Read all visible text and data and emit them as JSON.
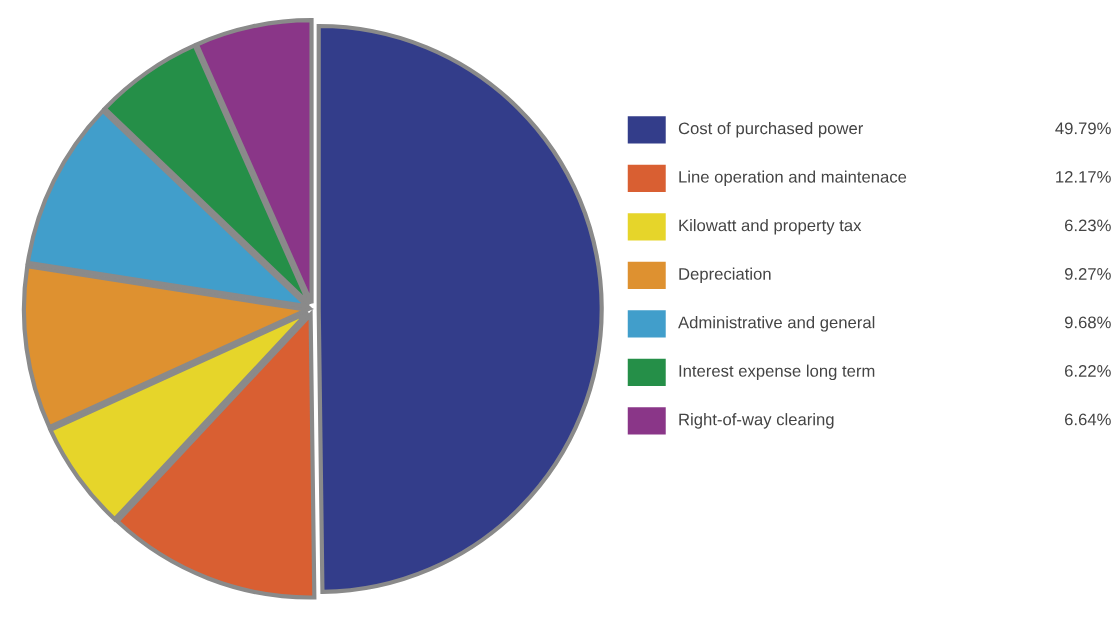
{
  "chart_data": {
    "type": "pie",
    "categories": [
      "Cost of purchased power",
      "Line operation and maintenace",
      "Kilowatt and property tax",
      "Depreciation",
      "Administrative and general",
      "Interest expense long term",
      "Right-of-way clearing"
    ],
    "values": [
      49.79,
      12.17,
      6.23,
      9.27,
      9.68,
      6.22,
      6.64
    ],
    "value_labels": [
      "49.79%",
      "12.17%",
      "6.23%",
      "9.27%",
      "9.68%",
      "6.22%",
      "6.64%"
    ],
    "colors": [
      "#333d8a",
      "#d95f32",
      "#e6d52a",
      "#de9130",
      "#419ecb",
      "#258f48",
      "#8a3688"
    ],
    "legend": "right"
  }
}
